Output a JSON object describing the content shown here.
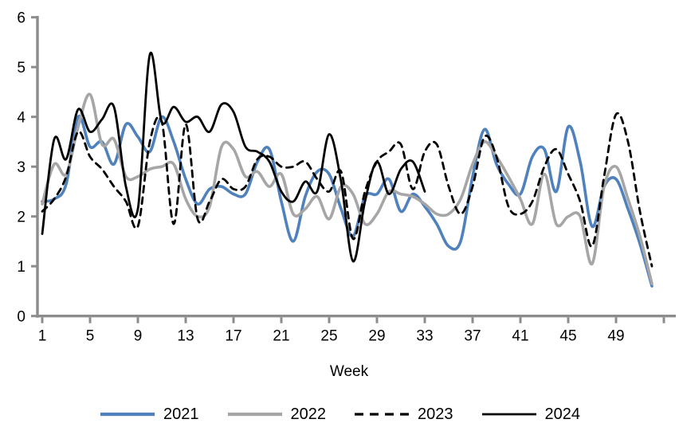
{
  "chart_data": {
    "type": "line",
    "title": "",
    "xlabel": "Week",
    "ylabel": "",
    "xlim": [
      1,
      53
    ],
    "ylim": [
      0,
      6
    ],
    "y_ticks": [
      0,
      1,
      2,
      3,
      4,
      5,
      6
    ],
    "x_ticks": [
      1,
      5,
      9,
      13,
      17,
      21,
      25,
      29,
      33,
      37,
      41,
      45,
      49
    ],
    "grid": false,
    "legend_position": "bottom",
    "axis_color": "#8c8c8c",
    "weeks_start": 1,
    "series": [
      {
        "name": "2021",
        "color": "#4F81BD",
        "style": "solid",
        "stroke_width": 3.6,
        "values": [
          2.3,
          2.35,
          2.65,
          4.0,
          3.4,
          3.5,
          3.05,
          3.85,
          3.6,
          3.3,
          4.0,
          3.5,
          2.75,
          2.25,
          2.55,
          2.6,
          2.45,
          2.45,
          3.1,
          3.35,
          2.3,
          1.5,
          2.4,
          2.9,
          2.85,
          2.15,
          1.6,
          2.4,
          2.45,
          2.75,
          2.1,
          2.45,
          2.2,
          1.85,
          1.4,
          1.5,
          2.8,
          3.75,
          3.05,
          2.65,
          2.45,
          3.2,
          3.35,
          2.5,
          3.8,
          3.1,
          1.8,
          2.6,
          2.75,
          2.15,
          1.45,
          0.6
        ]
      },
      {
        "name": "2022",
        "color": "#A6A6A6",
        "style": "solid",
        "stroke_width": 3.6,
        "values": [
          2.25,
          3.05,
          2.85,
          3.8,
          4.45,
          3.45,
          3.55,
          2.8,
          2.8,
          2.95,
          3.0,
          3.05,
          2.35,
          2.0,
          2.2,
          3.4,
          3.35,
          2.8,
          2.9,
          2.6,
          2.85,
          2.05,
          2.15,
          2.4,
          1.95,
          2.6,
          2.45,
          1.85,
          2.05,
          2.5,
          2.45,
          2.4,
          2.25,
          2.05,
          2.05,
          2.35,
          3.05,
          3.5,
          3.2,
          2.8,
          2.35,
          1.85,
          2.85,
          1.85,
          2.0,
          2.0,
          1.05,
          2.6,
          3.0,
          2.35,
          1.6,
          0.65
        ]
      },
      {
        "name": "2023",
        "color": "#000000",
        "style": "dashed",
        "stroke_width": 2.8,
        "values": [
          2.1,
          2.35,
          2.8,
          3.7,
          3.2,
          2.95,
          2.6,
          2.3,
          1.8,
          3.5,
          3.9,
          1.85,
          3.85,
          1.95,
          2.3,
          2.75,
          2.55,
          2.6,
          3.15,
          3.2,
          3.0,
          3.0,
          3.1,
          2.75,
          2.5,
          2.9,
          1.55,
          2.5,
          3.1,
          3.3,
          3.45,
          2.55,
          3.3,
          3.45,
          2.6,
          2.05,
          2.6,
          3.6,
          3.2,
          2.2,
          2.05,
          2.3,
          3.0,
          3.35,
          2.85,
          2.3,
          1.4,
          2.8,
          4.05,
          3.5,
          2.1,
          1.0
        ]
      },
      {
        "name": "2024",
        "color": "#000000",
        "style": "solid",
        "stroke_width": 2.8,
        "values": [
          1.65,
          3.55,
          3.15,
          4.15,
          3.7,
          3.95,
          4.2,
          2.6,
          2.15,
          5.25,
          3.9,
          4.2,
          3.9,
          4.0,
          3.7,
          4.25,
          4.1,
          3.4,
          3.3,
          3.1,
          2.5,
          2.3,
          2.7,
          2.5,
          3.65,
          2.7,
          1.1,
          2.3,
          3.1,
          2.45,
          2.95,
          3.1,
          2.5
        ]
      }
    ]
  }
}
